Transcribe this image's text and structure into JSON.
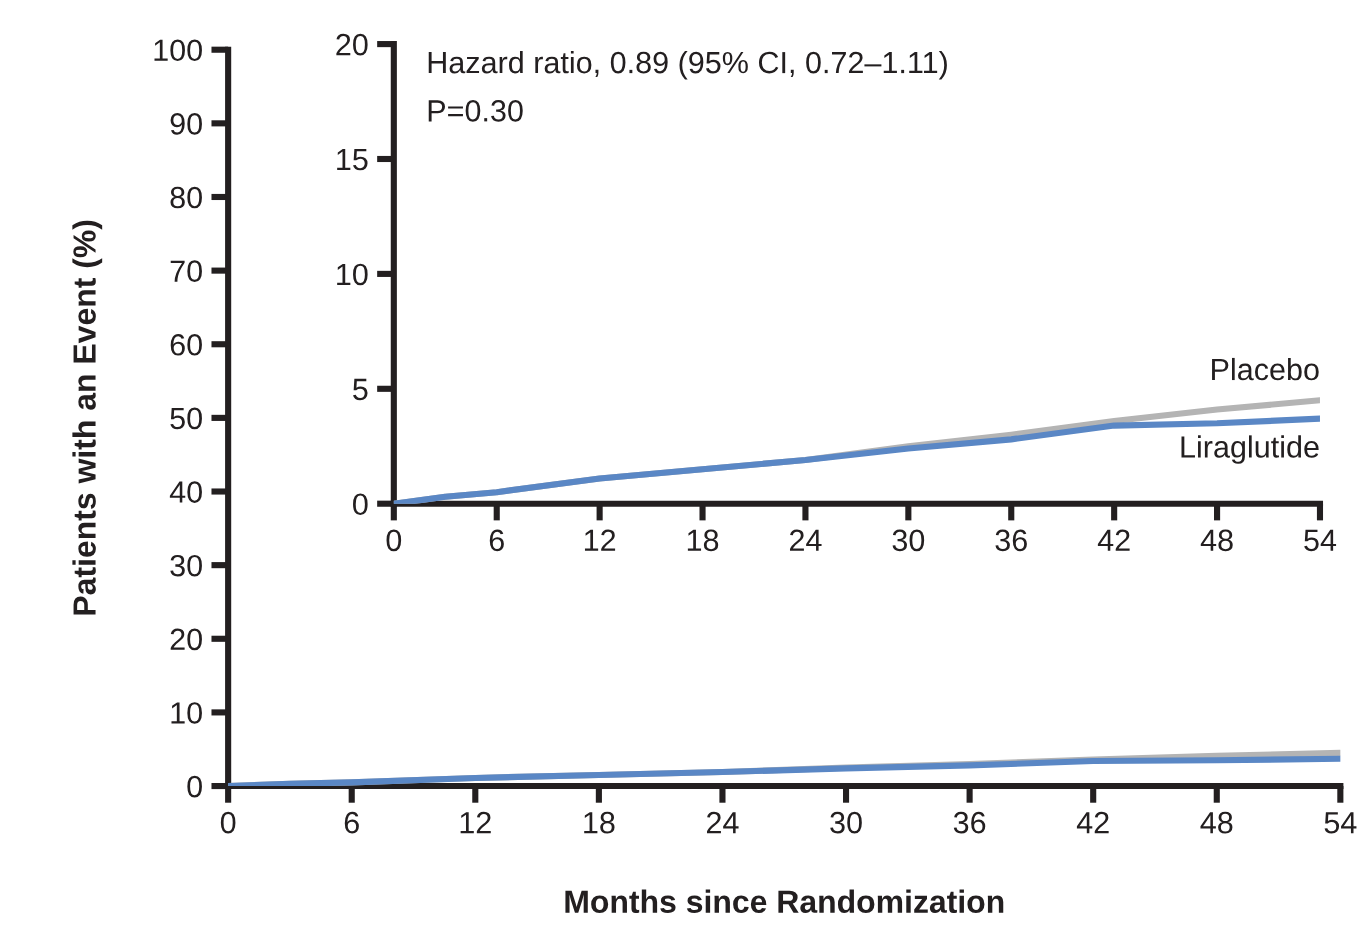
{
  "chart_data": [
    {
      "type": "line",
      "xlabel": "Months since Randomization",
      "ylabel": "Patients with an Event (%)",
      "x": [
        0,
        3,
        6,
        12,
        18,
        24,
        30,
        36,
        42,
        48,
        54
      ],
      "series": [
        {
          "color": "#b4b4b4",
          "values": [
            0,
            0.3,
            0.5,
            1.1,
            1.5,
            1.9,
            2.5,
            3.0,
            3.6,
            4.1,
            4.5
          ]
        },
        {
          "color": "#5a87c5",
          "values": [
            0,
            0.3,
            0.5,
            1.1,
            1.5,
            1.9,
            2.4,
            2.8,
            3.4,
            3.5,
            3.7
          ]
        }
      ],
      "xlim": [
        0,
        54
      ],
      "ylim": [
        0,
        100
      ],
      "xticks": [
        0,
        6,
        12,
        18,
        24,
        30,
        36,
        42,
        48,
        54
      ],
      "yticks": [
        0,
        10,
        20,
        30,
        40,
        50,
        60,
        70,
        80,
        90,
        100
      ]
    },
    {
      "type": "line",
      "annotations": [
        "Hazard ratio, 0.89 (95% CI, 0.72–1.11)",
        "P=0.30"
      ],
      "x": [
        0,
        3,
        6,
        12,
        18,
        24,
        30,
        36,
        42,
        48,
        54
      ],
      "series": [
        {
          "name": "Placebo",
          "color": "#b4b4b4",
          "values": [
            0,
            0.3,
            0.5,
            1.1,
            1.5,
            1.9,
            2.5,
            3.0,
            3.6,
            4.1,
            4.5
          ]
        },
        {
          "name": "Liraglutide",
          "color": "#5a87c5",
          "values": [
            0,
            0.3,
            0.5,
            1.1,
            1.5,
            1.9,
            2.4,
            2.8,
            3.4,
            3.5,
            3.7
          ]
        }
      ],
      "xlim": [
        0,
        54
      ],
      "ylim": [
        0,
        20
      ],
      "xticks": [
        0,
        6,
        12,
        18,
        24,
        30,
        36,
        42,
        48,
        54
      ],
      "yticks": [
        0,
        5,
        10,
        15,
        20
      ]
    }
  ]
}
